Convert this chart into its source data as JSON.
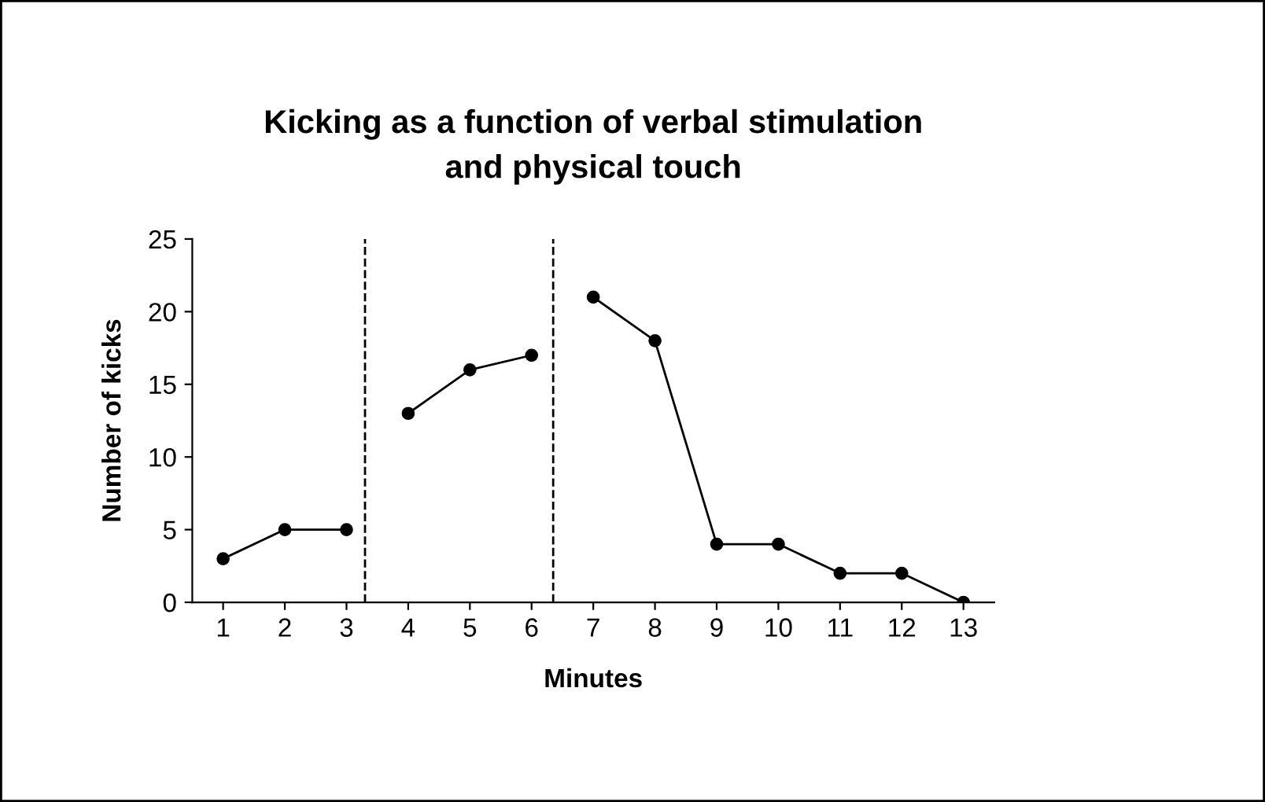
{
  "chart_data": {
    "type": "line",
    "title": "Kicking as a function of verbal stimulation\nand physical touch",
    "xlabel": "Minutes",
    "ylabel": "Number of kicks",
    "series": [
      {
        "color": "#000000",
        "x": [
          1,
          2,
          3
        ],
        "values": [
          3,
          5,
          5
        ]
      },
      {
        "color": "#000000",
        "x": [
          4,
          5,
          6
        ],
        "values": [
          13,
          16,
          17
        ]
      },
      {
        "color": "#000000",
        "x": [
          7,
          8,
          9,
          10,
          11,
          12,
          13
        ],
        "values": [
          21,
          18,
          4,
          4,
          2,
          2,
          0
        ]
      }
    ],
    "xlim": [
      0.5,
      13.5
    ],
    "xticks": [
      1,
      2,
      3,
      4,
      5,
      6,
      7,
      8,
      9,
      10,
      11,
      12,
      13
    ],
    "ylim": [
      0,
      25
    ],
    "yticks": [
      0,
      5,
      10,
      15,
      20,
      25
    ],
    "ref_lines": [
      {
        "axis": "x",
        "value": 3.3,
        "label": null,
        "color": "#000000",
        "line_style": "dashed"
      },
      {
        "axis": "x",
        "value": 6.35,
        "label": null,
        "color": "#000000",
        "line_style": "dashed"
      }
    ],
    "marker": "circle",
    "line_style": "solid",
    "grid": false,
    "legend": false
  }
}
